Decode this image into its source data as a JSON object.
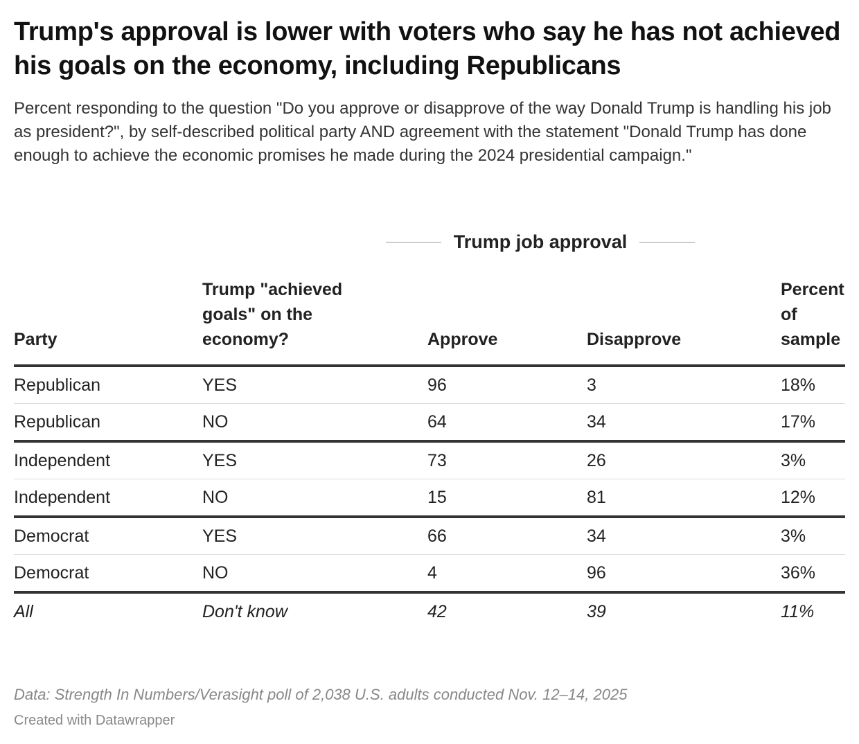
{
  "chart_data": {
    "type": "table",
    "title": "Trump's approval is lower with voters who say he has not achieved his goals on the economy, including Republicans",
    "subtitle": "Percent responding to the question \"Do you approve or disapprove of the way Donald Trump is handling his job as president?\", by self-described political party AND agreement with the statement \"Donald Trump has done enough to achieve the economic promises he made during the 2024 presidential campaign.\"",
    "spanner": "Trump job approval",
    "columns": [
      "Party",
      "Trump \"achieved goals\" on the economy?",
      "Approve",
      "Disapprove",
      "Percent of sample"
    ],
    "rows": [
      [
        "Republican",
        "YES",
        "96",
        "3",
        "18%"
      ],
      [
        "Republican",
        "NO",
        "64",
        "34",
        "17%"
      ],
      [
        "Independent",
        "YES",
        "73",
        "26",
        "3%"
      ],
      [
        "Independent",
        "NO",
        "15",
        "81",
        "12%"
      ],
      [
        "Democrat",
        "YES",
        "66",
        "34",
        "3%"
      ],
      [
        "Democrat",
        "NO",
        "4",
        "96",
        "36%"
      ],
      [
        "All",
        "Don't know",
        "42",
        "39",
        "11%"
      ]
    ],
    "note": "Data: Strength In Numbers/Verasight poll of 2,038 U.S. adults conducted Nov. 12–14, 2025",
    "credit": "Created with Datawrapper"
  }
}
